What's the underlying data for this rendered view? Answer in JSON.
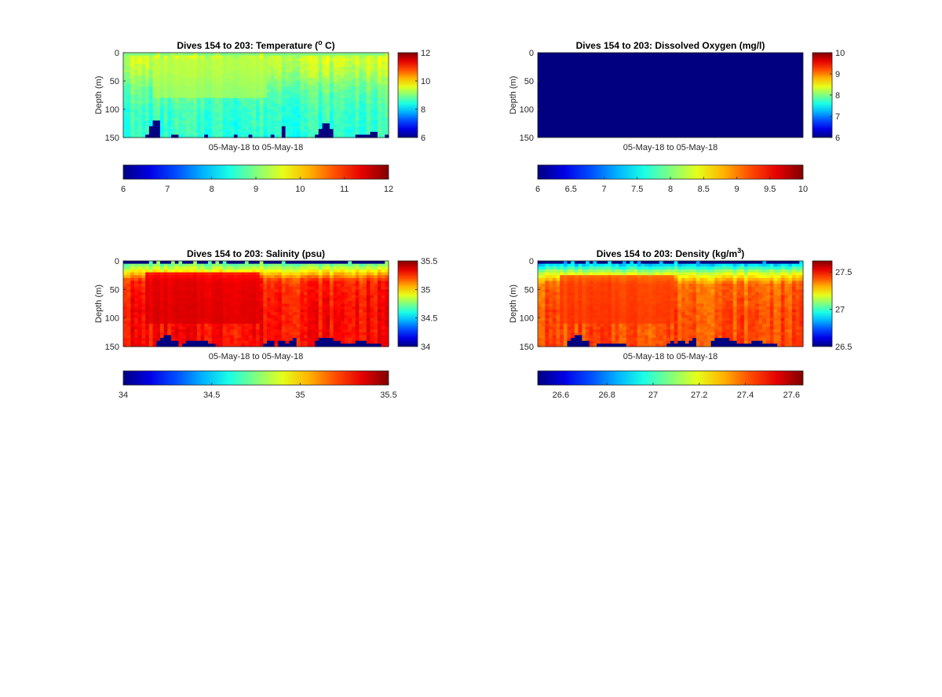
{
  "colors": {
    "background": "#ffffff",
    "axis": "#262626",
    "colormap": "jet"
  },
  "chart_data": [
    {
      "id": "temperature",
      "type": "heatmap",
      "title": "Dives 154 to 203: Temperature (",
      "title_sup": "o",
      "title_end": " C)",
      "xlabel": "05-May-18 to 05-May-18",
      "ylabel": "Depth (m)",
      "ylim": [
        0,
        150
      ],
      "yticks": [
        "0",
        "50",
        "100",
        "150"
      ],
      "clim": [
        6,
        12
      ],
      "side_colorbar_ticks": [
        "6",
        "8",
        "10",
        "12"
      ],
      "side_colorbar_values": [
        6,
        8,
        10,
        12
      ],
      "bottom_colorbar_ticks": [
        "6",
        "7",
        "8",
        "9",
        "10",
        "11",
        "12"
      ],
      "bottom_colorbar_values": [
        6,
        7,
        8,
        9,
        10,
        11,
        12
      ],
      "grid": false,
      "columns": 72,
      "top_layer": {
        "value": 9.0,
        "range_m": [
          0,
          5
        ]
      },
      "profile": [
        [
          0,
          9.1
        ],
        [
          10,
          9.5
        ],
        [
          35,
          9.3
        ],
        [
          60,
          8.9
        ],
        [
          100,
          8.6
        ],
        [
          150,
          8.5
        ]
      ],
      "warm_core": {
        "value": 9.3,
        "columns": [
          8,
          38
        ],
        "range_m": [
          10,
          80
        ]
      },
      "bottom_gaps": [
        [
          0,
          0
        ],
        [
          6,
          1
        ],
        [
          7,
          4
        ],
        [
          8,
          6
        ],
        [
          9,
          6
        ],
        [
          13,
          1
        ],
        [
          14,
          1
        ],
        [
          22,
          1
        ],
        [
          30,
          1
        ],
        [
          34,
          1
        ],
        [
          40,
          1
        ],
        [
          43,
          4
        ],
        [
          52,
          1
        ],
        [
          53,
          3
        ],
        [
          54,
          5
        ],
        [
          55,
          5
        ],
        [
          56,
          3
        ],
        [
          63,
          1
        ],
        [
          64,
          1
        ],
        [
          65,
          1
        ],
        [
          66,
          1
        ],
        [
          67,
          2
        ],
        [
          68,
          2
        ],
        [
          71,
          1
        ]
      ]
    },
    {
      "id": "oxygen",
      "type": "heatmap",
      "title": "Dives 154 to 203: Dissolved Oxygen (mg/l)",
      "xlabel": "05-May-18 to 05-May-18",
      "ylabel": "Depth (m)",
      "ylim": [
        0,
        150
      ],
      "yticks": [
        "0",
        "50",
        "100",
        "150"
      ],
      "clim": [
        6,
        10
      ],
      "side_colorbar_ticks": [
        "6",
        "7",
        "8",
        "9",
        "10"
      ],
      "side_colorbar_values": [
        6,
        7,
        8,
        9,
        10
      ],
      "bottom_colorbar_ticks": [
        "6",
        "6.5",
        "7",
        "7.5",
        "8",
        "8.5",
        "9",
        "9.5",
        "10"
      ],
      "bottom_colorbar_values": [
        6,
        6.5,
        7,
        7.5,
        8,
        8.5,
        9,
        9.5,
        10
      ],
      "grid": false,
      "fill_value": 6
    },
    {
      "id": "salinity",
      "type": "heatmap",
      "title": "Dives 154 to 203: Salinity (psu)",
      "xlabel": "05-May-18 to 05-May-18",
      "ylabel": "Depth (m)",
      "ylim": [
        0,
        150
      ],
      "yticks": [
        "0",
        "50",
        "100",
        "150"
      ],
      "clim": [
        34,
        35.5
      ],
      "side_colorbar_ticks": [
        "34",
        "34.5",
        "35",
        "35.5"
      ],
      "side_colorbar_values": [
        34,
        34.5,
        35,
        35.5
      ],
      "bottom_colorbar_ticks": [
        "34",
        "34.5",
        "35",
        "35.5"
      ],
      "bottom_colorbar_values": [
        34,
        34.5,
        35,
        35.5
      ],
      "grid": false,
      "columns": 72,
      "top_layer": {
        "value": 34.0,
        "range_m": [
          0,
          5
        ]
      },
      "profile": [
        [
          0,
          34.75
        ],
        [
          8,
          34.75
        ],
        [
          18,
          34.95
        ],
        [
          35,
          35.25
        ],
        [
          80,
          35.3
        ],
        [
          150,
          35.3
        ]
      ],
      "warm_core": {
        "value": 35.38,
        "columns": [
          6,
          36
        ],
        "range_m": [
          20,
          110
        ]
      },
      "bottom_gaps": [
        [
          9,
          2
        ],
        [
          10,
          3
        ],
        [
          11,
          4
        ],
        [
          12,
          4
        ],
        [
          13,
          2
        ],
        [
          14,
          2
        ],
        [
          16,
          1
        ],
        [
          17,
          2
        ],
        [
          18,
          2
        ],
        [
          19,
          2
        ],
        [
          20,
          2
        ],
        [
          21,
          2
        ],
        [
          22,
          2
        ],
        [
          23,
          1
        ],
        [
          24,
          1
        ],
        [
          38,
          1
        ],
        [
          39,
          2
        ],
        [
          40,
          2
        ],
        [
          42,
          2
        ],
        [
          43,
          2
        ],
        [
          44,
          1
        ],
        [
          45,
          2
        ],
        [
          46,
          3
        ],
        [
          52,
          2
        ],
        [
          53,
          3
        ],
        [
          54,
          3
        ],
        [
          55,
          3
        ],
        [
          56,
          3
        ],
        [
          57,
          2
        ],
        [
          58,
          2
        ],
        [
          59,
          1
        ],
        [
          60,
          1
        ],
        [
          61,
          1
        ],
        [
          62,
          1
        ],
        [
          63,
          2
        ],
        [
          64,
          2
        ],
        [
          65,
          2
        ],
        [
          66,
          1
        ],
        [
          67,
          1
        ],
        [
          68,
          1
        ],
        [
          69,
          1
        ]
      ]
    },
    {
      "id": "density",
      "type": "heatmap",
      "title": "Dives 154 to 203: Density (kg/m",
      "title_sup": "3",
      "title_end": ")",
      "xlabel": "05-May-18 to 05-May-18",
      "ylabel": "Depth (m)",
      "ylim": [
        0,
        150
      ],
      "yticks": [
        "0",
        "50",
        "100",
        "150"
      ],
      "clim": [
        26.5,
        27.65
      ],
      "side_colorbar_ticks": [
        "26.5",
        "27",
        "27.5"
      ],
      "side_colorbar_values": [
        26.5,
        27,
        27.5
      ],
      "bottom_colorbar_ticks": [
        "26.6",
        "26.8",
        "27",
        "27.2",
        "27.4",
        "27.6"
      ],
      "bottom_colorbar_values": [
        26.6,
        26.8,
        27,
        27.2,
        27.4,
        27.6
      ],
      "grid": false,
      "columns": 72,
      "top_layer": {
        "value": 26.5,
        "range_m": [
          0,
          5
        ]
      },
      "profile": [
        [
          0,
          26.85
        ],
        [
          8,
          26.9
        ],
        [
          20,
          27.15
        ],
        [
          40,
          27.38
        ],
        [
          90,
          27.42
        ],
        [
          150,
          27.42
        ]
      ],
      "warm_core": {
        "value": 27.45,
        "columns": [
          6,
          36
        ],
        "range_m": [
          25,
          110
        ]
      },
      "bottom_gaps": [
        [
          8,
          2
        ],
        [
          9,
          3
        ],
        [
          10,
          4
        ],
        [
          11,
          4
        ],
        [
          12,
          2
        ],
        [
          13,
          2
        ],
        [
          16,
          1
        ],
        [
          17,
          1
        ],
        [
          18,
          1
        ],
        [
          19,
          1
        ],
        [
          20,
          1
        ],
        [
          21,
          1
        ],
        [
          22,
          1
        ],
        [
          23,
          1
        ],
        [
          35,
          1
        ],
        [
          36,
          2
        ],
        [
          37,
          1
        ],
        [
          38,
          2
        ],
        [
          39,
          2
        ],
        [
          40,
          1
        ],
        [
          41,
          2
        ],
        [
          42,
          3
        ],
        [
          47,
          2
        ],
        [
          48,
          3
        ],
        [
          49,
          3
        ],
        [
          50,
          3
        ],
        [
          51,
          3
        ],
        [
          52,
          2
        ],
        [
          53,
          2
        ],
        [
          54,
          1
        ],
        [
          55,
          1
        ],
        [
          56,
          1
        ],
        [
          57,
          1
        ],
        [
          58,
          2
        ],
        [
          59,
          2
        ],
        [
          60,
          2
        ],
        [
          61,
          1
        ],
        [
          62,
          1
        ],
        [
          63,
          1
        ],
        [
          64,
          1
        ]
      ]
    }
  ]
}
